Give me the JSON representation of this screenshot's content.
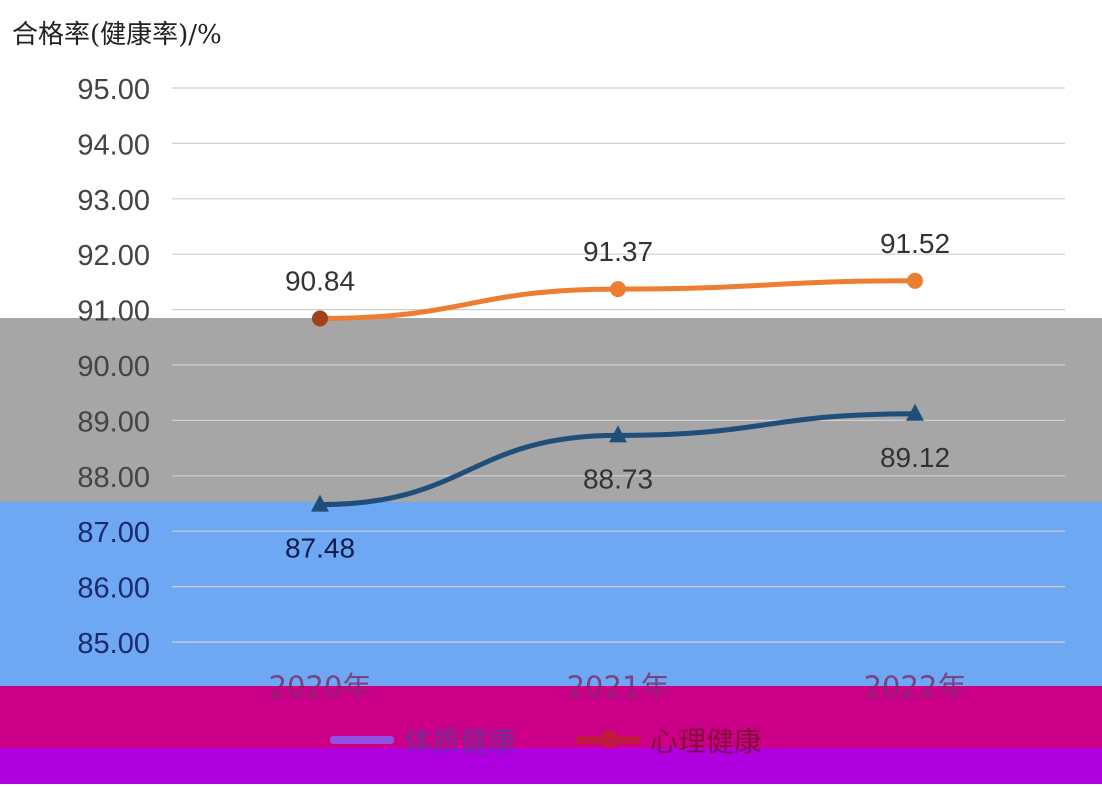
{
  "chart_data": {
    "type": "line",
    "title": "",
    "ylabel": "合格率(健康率)/%",
    "xlabel": "",
    "categories": [
      "2020年",
      "2021年",
      "2022年"
    ],
    "ylim": [
      85,
      95
    ],
    "yticks": [
      "95.00",
      "94.00",
      "93.00",
      "92.00",
      "91.00",
      "90.00",
      "89.00",
      "88.00",
      "87.00",
      "86.00",
      "85.00"
    ],
    "grid": true,
    "legend_position": "bottom",
    "series": [
      {
        "name": "体质健康",
        "values": [
          87.48,
          88.73,
          89.12
        ],
        "labels": [
          "87.48",
          "88.73",
          "89.12"
        ],
        "marker": "triangle",
        "color": "#1F4E79"
      },
      {
        "name": "心理健康",
        "values": [
          90.84,
          91.37,
          91.52
        ],
        "labels": [
          "90.84",
          "91.37",
          "91.52"
        ],
        "marker": "circle",
        "color": "#ED7D31"
      }
    ]
  },
  "overlay_colors": {
    "gray": "#A6A6A6",
    "blue": "#6FA8F2",
    "magenta": "#CC0088",
    "purple": "#B000E0"
  }
}
